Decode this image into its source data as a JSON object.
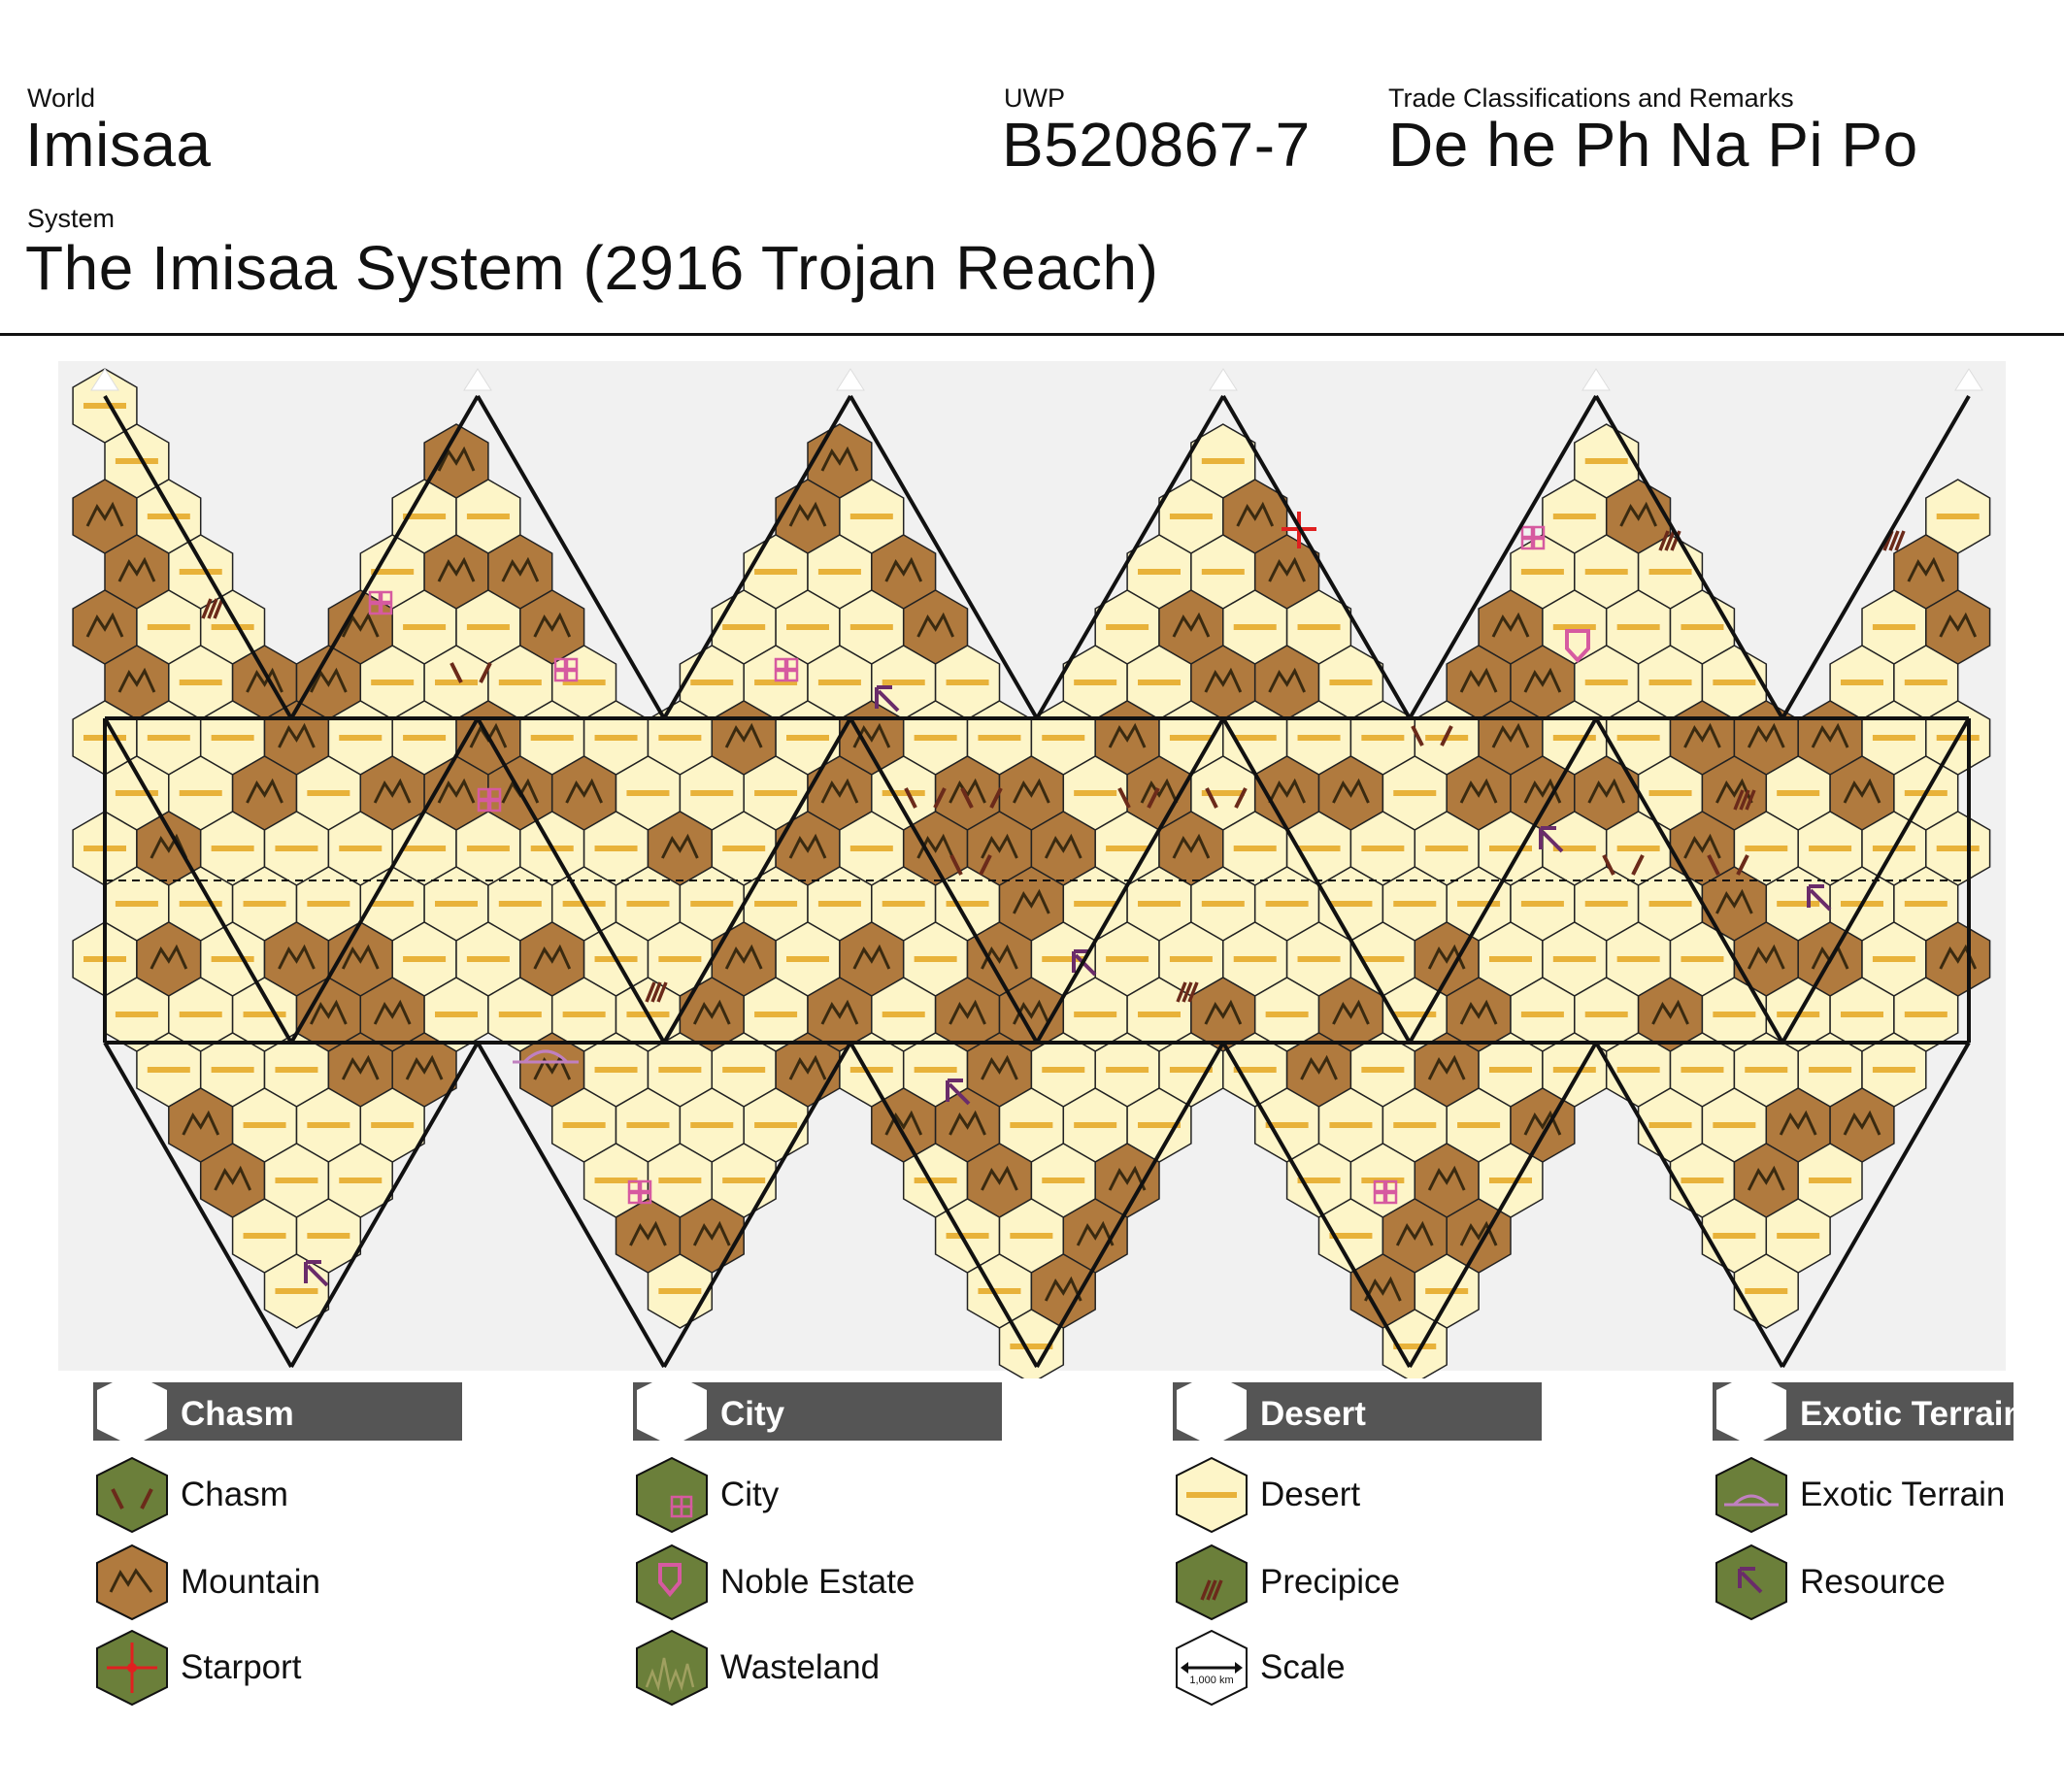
{
  "header": {
    "world_label": "World",
    "world_name": "Imisaa",
    "uwp_label": "UWP",
    "uwp_value": "B520867-7",
    "trade_label": "Trade Classifications and Remarks",
    "trade_value": "De he Ph Na Pi Po",
    "system_label": "System",
    "system_name": "The Imisaa System (2916 Trojan Reach)"
  },
  "colors": {
    "desert": "#fdf5c8",
    "mountain": "#b07a3e",
    "legend_green": "#6b7f3a",
    "grid_line": "#111111",
    "desert_stripe": "#e8b23a",
    "resource": "#6a2c6a",
    "city": "#d65aa0",
    "starport": "#e02020",
    "chasm": "#6b2a1a"
  },
  "legend_headers": [
    {
      "label": "Chasm"
    },
    {
      "label": "City"
    },
    {
      "label": "Desert"
    },
    {
      "label": "Exotic Terrain"
    }
  ],
  "legend": [
    {
      "label": "Chasm",
      "icon": "chasm-icon"
    },
    {
      "label": "City",
      "icon": "city-icon"
    },
    {
      "label": "Desert",
      "icon": "desert-icon"
    },
    {
      "label": "Exotic Terrain",
      "icon": "exotic-terrain-icon"
    },
    {
      "label": "Mountain",
      "icon": "mountain-icon"
    },
    {
      "label": "Noble Estate",
      "icon": "noble-estate-icon"
    },
    {
      "label": "Precipice",
      "icon": "precipice-icon"
    },
    {
      "label": "Resource",
      "icon": "resource-icon"
    },
    {
      "label": "Starport",
      "icon": "starport-icon"
    },
    {
      "label": "Wasteland",
      "icon": "wasteland-icon"
    },
    {
      "label": "Scale",
      "icon": "scale-icon"
    }
  ],
  "scale_text": "1,000 km"
}
